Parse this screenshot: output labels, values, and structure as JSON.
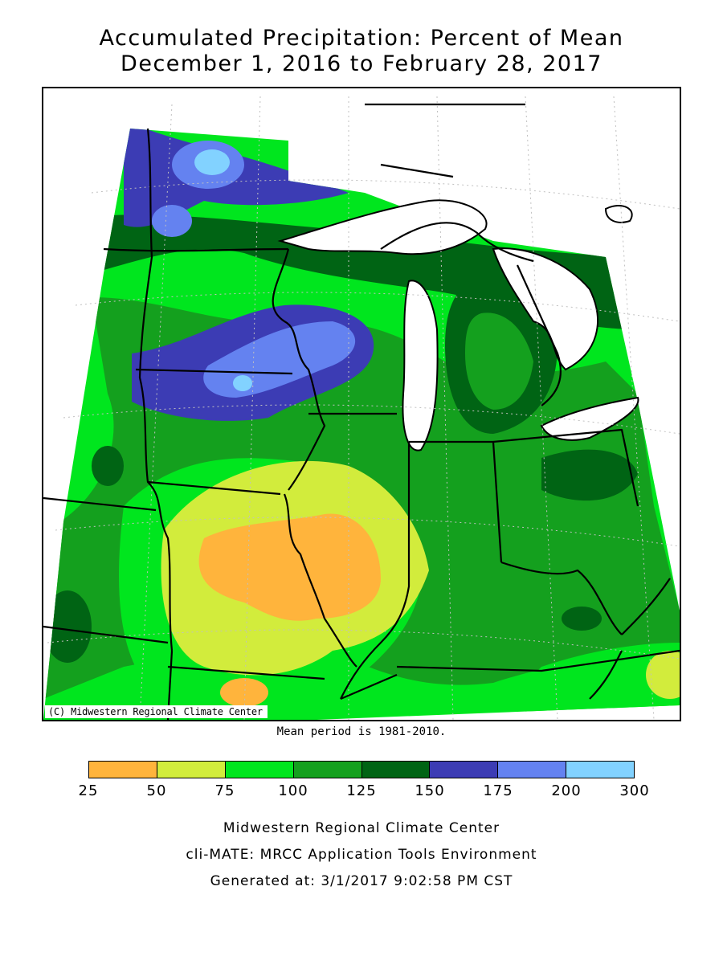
{
  "title_line1": "Accumulated Precipitation: Percent of Mean",
  "title_line2": "December 1, 2016 to February 28, 2017",
  "map": {
    "copyright": "(C) Midwestern Regional Climate Center",
    "region": "Midwest (MN, WI, MI, IA, IL, IN, OH, MO, KY)",
    "colors": {
      "c25_50": "#ffb43c",
      "c50_75": "#d2ec3c",
      "c75_100": "#00e61e",
      "c100_125": "#14a01e",
      "c125_150": "#006414",
      "c150_175": "#3c3cb4",
      "c175_200": "#6482f0",
      "c200_300": "#82d2ff",
      "water": "#ffffff",
      "border": "#000000",
      "grid": "#c0c0c0"
    }
  },
  "mean_period": "Mean period is 1981-2010.",
  "legend": {
    "bins": [
      {
        "range": "25-50",
        "color": "#ffb43c"
      },
      {
        "range": "50-75",
        "color": "#d2ec3c"
      },
      {
        "range": "75-100",
        "color": "#00e61e"
      },
      {
        "range": "100-125",
        "color": "#14a01e"
      },
      {
        "range": "125-150",
        "color": "#006414"
      },
      {
        "range": "150-175",
        "color": "#3c3cb4"
      },
      {
        "range": "175-200",
        "color": "#6482f0"
      },
      {
        "range": "200-300",
        "color": "#82d2ff"
      }
    ],
    "ticks": [
      "25",
      "50",
      "75",
      "100",
      "125",
      "150",
      "175",
      "200",
      "300"
    ]
  },
  "footer": {
    "line1": "Midwestern Regional Climate Center",
    "line2": "cli-MATE: MRCC Application Tools Environment",
    "line3": "Generated at: 3/1/2017 9:02:58 PM CST"
  }
}
